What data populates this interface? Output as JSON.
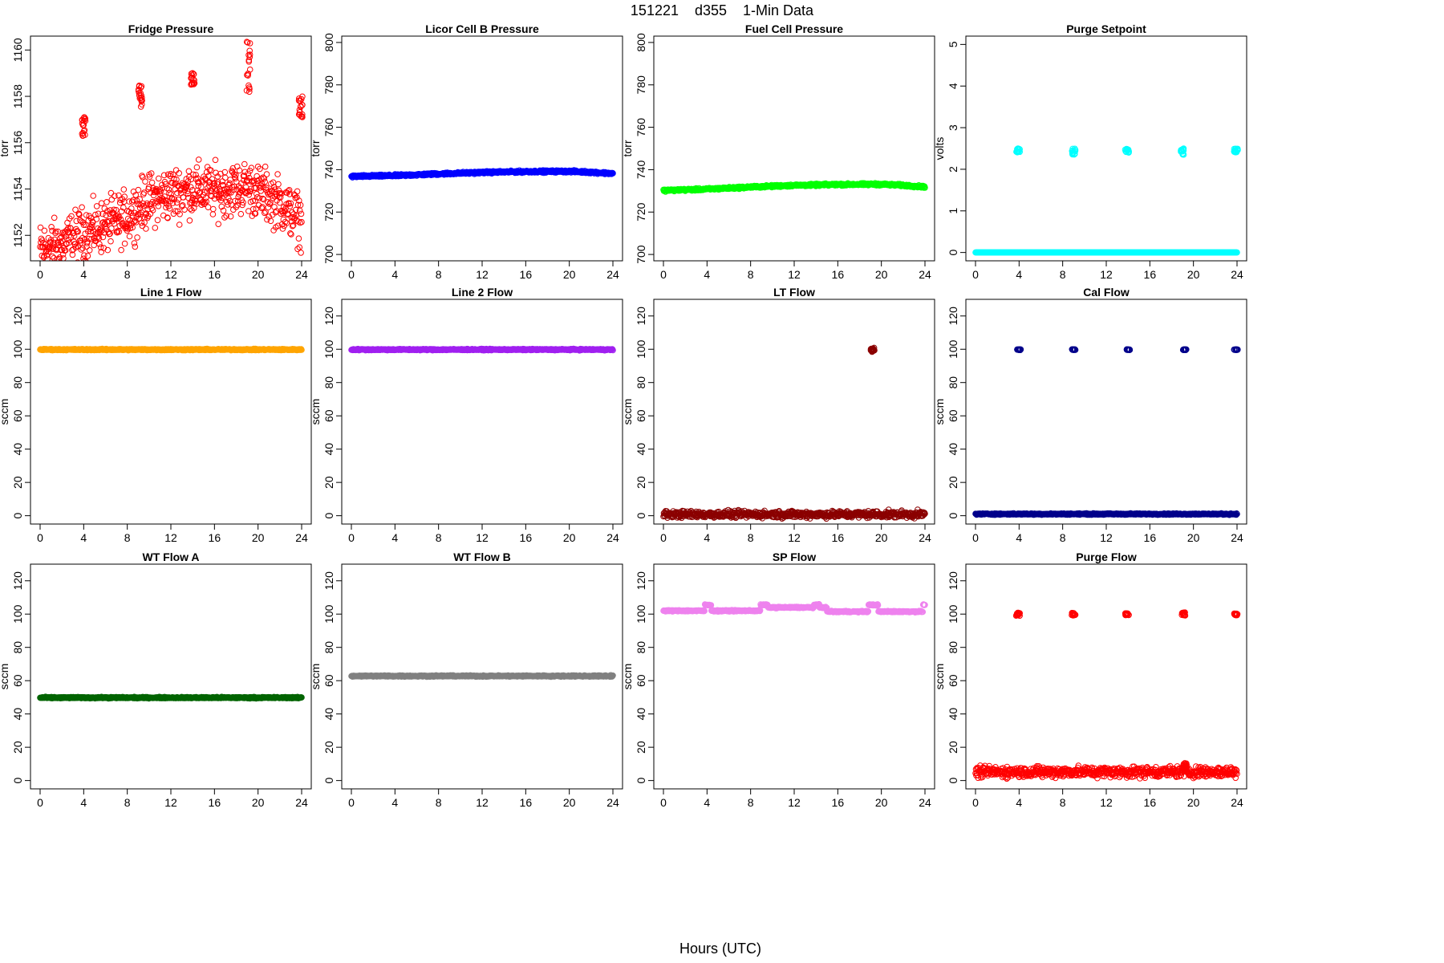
{
  "figure": {
    "title": "151221    d355    1-Min Data",
    "xlabel": "Hours (UTC)"
  },
  "chart_data": [
    {
      "type": "scatter",
      "title": "Fridge Pressure",
      "ylabel": "torr",
      "color": "#ff0000",
      "marker": "open",
      "xlim": [
        0,
        24
      ],
      "ylim": [
        1150.9,
        1160.6
      ],
      "xticks": [
        0,
        4,
        8,
        12,
        16,
        20,
        24
      ],
      "yticks": [
        1152,
        1154,
        1156,
        1158,
        1160
      ],
      "trend": [
        [
          0,
          1151.4
        ],
        [
          2,
          1151.6
        ],
        [
          4,
          1152.1
        ],
        [
          6,
          1152.4
        ],
        [
          8,
          1152.8
        ],
        [
          9.3,
          1153.3
        ],
        [
          10,
          1153.5
        ],
        [
          12,
          1153.8
        ],
        [
          14,
          1154.0
        ],
        [
          16,
          1153.9
        ],
        [
          18,
          1154.0
        ],
        [
          19,
          1154.1
        ],
        [
          20,
          1153.9
        ],
        [
          22,
          1153.4
        ],
        [
          24,
          1152.6
        ]
      ],
      "noise": 0.55,
      "clusters": [
        {
          "x": 4.0,
          "y": [
            1156.2,
            1157.1
          ]
        },
        {
          "x": 9.2,
          "y": [
            1157.5,
            1158.5
          ]
        },
        {
          "x": 14.0,
          "y": [
            1158.5,
            1159.1
          ]
        },
        {
          "x": 19.1,
          "y": [
            1158.1,
            1160.4
          ]
        },
        {
          "x": 23.9,
          "y": [
            1157.1,
            1158.0
          ]
        }
      ]
    },
    {
      "type": "scatter",
      "title": "Licor Cell B Pressure",
      "ylabel": "torr",
      "color": "#0000ff",
      "marker": "open",
      "xlim": [
        0,
        24
      ],
      "ylim": [
        697,
        803
      ],
      "xticks": [
        0,
        4,
        8,
        12,
        16,
        20,
        24
      ],
      "yticks": [
        700,
        720,
        740,
        760,
        780,
        800
      ],
      "trend": [
        [
          0,
          736.8
        ],
        [
          4,
          737.2
        ],
        [
          8,
          738.0
        ],
        [
          12,
          738.7
        ],
        [
          16,
          739.1
        ],
        [
          20,
          739.2
        ],
        [
          22,
          738.8
        ],
        [
          24,
          738.2
        ]
      ],
      "noise": 0.25,
      "clusters": []
    },
    {
      "type": "scatter",
      "title": "Fuel Cell Pressure",
      "ylabel": "torr",
      "color": "#00ff00",
      "marker": "open",
      "xlim": [
        0,
        24
      ],
      "ylim": [
        697,
        803
      ],
      "xticks": [
        0,
        4,
        8,
        12,
        16,
        20,
        24
      ],
      "yticks": [
        700,
        720,
        740,
        760,
        780,
        800
      ],
      "trend": [
        [
          0,
          730.2
        ],
        [
          4,
          730.8
        ],
        [
          8,
          731.8
        ],
        [
          12,
          732.6
        ],
        [
          16,
          733.0
        ],
        [
          20,
          733.1
        ],
        [
          22,
          732.6
        ],
        [
          24,
          731.9
        ]
      ],
      "noise": 0.25,
      "clusters": []
    },
    {
      "type": "scatter",
      "title": "Purge Setpoint",
      "ylabel": "volts",
      "color": "#00ffff",
      "marker": "open",
      "xlim": [
        0,
        24
      ],
      "ylim": [
        -0.2,
        5.2
      ],
      "xticks": [
        0,
        4,
        8,
        12,
        16,
        20,
        24
      ],
      "yticks": [
        0,
        1,
        2,
        3,
        4,
        5
      ],
      "trend": [
        [
          0,
          0
        ],
        [
          24,
          0
        ]
      ],
      "noise": 0.0,
      "clusters": [
        {
          "x": 3.9,
          "y": [
            2.4,
            2.5
          ]
        },
        {
          "x": 9.0,
          "y": [
            2.35,
            2.5
          ]
        },
        {
          "x": 13.9,
          "y": [
            2.4,
            2.5
          ]
        },
        {
          "x": 19.0,
          "y": [
            2.35,
            2.5
          ]
        },
        {
          "x": 23.9,
          "y": [
            2.4,
            2.5
          ]
        }
      ]
    },
    {
      "type": "scatter",
      "title": "Line 1 Flow",
      "ylabel": "sccm",
      "color": "#ffa500",
      "marker": "open",
      "xlim": [
        0,
        24
      ],
      "ylim": [
        -5,
        130
      ],
      "xticks": [
        0,
        4,
        8,
        12,
        16,
        20,
        24
      ],
      "yticks": [
        0,
        20,
        40,
        60,
        80,
        100,
        120
      ],
      "trend": [
        [
          0,
          99.8
        ],
        [
          24,
          99.8
        ]
      ],
      "noise": 0.2,
      "clusters": []
    },
    {
      "type": "scatter",
      "title": "Line 2 Flow",
      "ylabel": "sccm",
      "color": "#a020f0",
      "marker": "open",
      "xlim": [
        0,
        24
      ],
      "ylim": [
        -5,
        130
      ],
      "xticks": [
        0,
        4,
        8,
        12,
        16,
        20,
        24
      ],
      "yticks": [
        0,
        20,
        40,
        60,
        80,
        100,
        120
      ],
      "trend": [
        [
          0,
          99.8
        ],
        [
          24,
          99.8
        ]
      ],
      "noise": 0.2,
      "clusters": []
    },
    {
      "type": "scatter",
      "title": "LT Flow",
      "ylabel": "sccm",
      "color": "#8b0000",
      "marker": "open",
      "xlim": [
        0,
        24
      ],
      "ylim": [
        -5,
        130
      ],
      "xticks": [
        0,
        4,
        8,
        12,
        16,
        20,
        24
      ],
      "yticks": [
        0,
        20,
        40,
        60,
        80,
        100,
        120
      ],
      "trend": [
        [
          0,
          0.8
        ],
        [
          24,
          0.8
        ]
      ],
      "noise": 1.0,
      "clusters": [
        {
          "x": 19.2,
          "y": [
            98,
            101
          ]
        }
      ]
    },
    {
      "type": "scatter",
      "title": "Cal Flow",
      "ylabel": "sccm",
      "color": "#00008b",
      "marker": "open",
      "xlim": [
        0,
        24
      ],
      "ylim": [
        -5,
        130
      ],
      "xticks": [
        0,
        4,
        8,
        12,
        16,
        20,
        24
      ],
      "yticks": [
        0,
        20,
        40,
        60,
        80,
        100,
        120
      ],
      "trend": [
        [
          0,
          1.0
        ],
        [
          24,
          1.0
        ]
      ],
      "noise": 0.2,
      "clusters": [
        {
          "x": 4.0,
          "y": [
            99.5,
            100
          ]
        },
        {
          "x": 9.0,
          "y": [
            99.5,
            100
          ]
        },
        {
          "x": 14.0,
          "y": [
            99.5,
            100
          ]
        },
        {
          "x": 19.2,
          "y": [
            99.5,
            100
          ]
        },
        {
          "x": 23.9,
          "y": [
            99.5,
            100
          ]
        }
      ]
    },
    {
      "type": "scatter",
      "title": "WT Flow A",
      "ylabel": "sccm",
      "color": "#006400",
      "marker": "open",
      "xlim": [
        0,
        24
      ],
      "ylim": [
        -5,
        130
      ],
      "xticks": [
        0,
        4,
        8,
        12,
        16,
        20,
        24
      ],
      "yticks": [
        0,
        20,
        40,
        60,
        80,
        100,
        120
      ],
      "trend": [
        [
          0,
          49.8
        ],
        [
          24,
          49.8
        ]
      ],
      "noise": 0.2,
      "clusters": []
    },
    {
      "type": "scatter",
      "title": "WT Flow B",
      "ylabel": "sccm",
      "color": "#808080",
      "marker": "open",
      "xlim": [
        0,
        24
      ],
      "ylim": [
        -5,
        130
      ],
      "xticks": [
        0,
        4,
        8,
        12,
        16,
        20,
        24
      ],
      "yticks": [
        0,
        20,
        40,
        60,
        80,
        100,
        120
      ],
      "trend": [
        [
          0,
          62.8
        ],
        [
          24,
          62.8
        ]
      ],
      "noise": 0.2,
      "clusters": []
    },
    {
      "type": "scatter",
      "title": "SP Flow",
      "ylabel": "sccm",
      "color": "#ee82ee",
      "marker": "open",
      "xlim": [
        0,
        24
      ],
      "ylim": [
        -5,
        130
      ],
      "xticks": [
        0,
        4,
        8,
        12,
        16,
        20,
        24
      ],
      "yticks": [
        0,
        20,
        40,
        60,
        80,
        100,
        120
      ],
      "steps": [
        [
          0,
          3.8,
          102.0
        ],
        [
          3.8,
          4.4,
          105.5
        ],
        [
          4.4,
          8.9,
          102.0
        ],
        [
          8.9,
          9.6,
          105.5
        ],
        [
          9.6,
          13.8,
          104.0
        ],
        [
          13.8,
          14.3,
          105.5
        ],
        [
          14.3,
          15.0,
          104.0
        ],
        [
          15.0,
          18.8,
          101.5
        ],
        [
          18.8,
          19.7,
          105.5
        ],
        [
          19.7,
          23.8,
          101.5
        ],
        [
          23.8,
          24.0,
          105.5
        ]
      ],
      "noise": 0.2,
      "clusters": []
    },
    {
      "type": "scatter",
      "title": "Purge Flow",
      "ylabel": "sccm",
      "color": "#ff0000",
      "marker": "open",
      "xlim": [
        0,
        24
      ],
      "ylim": [
        -5,
        130
      ],
      "xticks": [
        0,
        4,
        8,
        12,
        16,
        20,
        24
      ],
      "yticks": [
        0,
        20,
        40,
        60,
        80,
        100,
        120
      ],
      "trend": [
        [
          0,
          5.2
        ],
        [
          24,
          5.2
        ]
      ],
      "noise": 1.6,
      "clusters": [
        {
          "x": 3.9,
          "y": [
            99,
            101
          ]
        },
        {
          "x": 9.0,
          "y": [
            99,
            101
          ]
        },
        {
          "x": 13.9,
          "y": [
            99.3,
            100.5
          ]
        },
        {
          "x": 19.1,
          "y": [
            99,
            101
          ]
        },
        {
          "x": 23.9,
          "y": [
            99.3,
            100.5
          ]
        },
        {
          "x": 19.2,
          "y": [
            7,
            11
          ]
        }
      ]
    }
  ]
}
